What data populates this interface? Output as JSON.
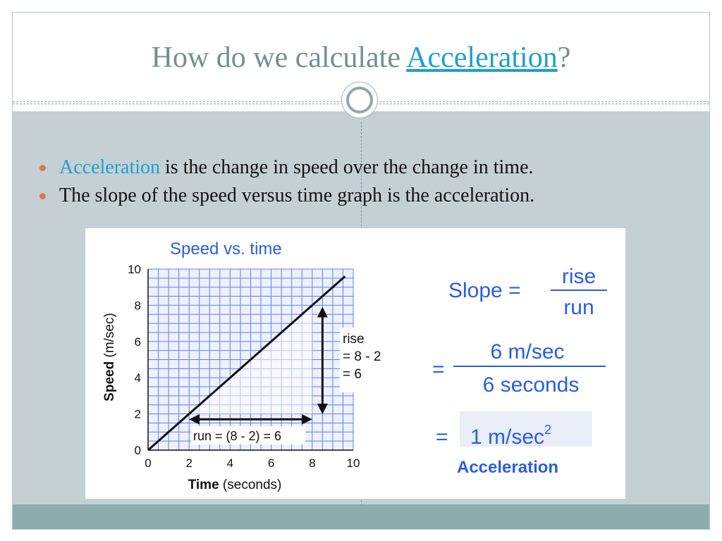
{
  "slide": {
    "title_prefix": "How do we calculate ",
    "title_link": "Acceleration",
    "title_suffix": "?",
    "bullets": [
      {
        "keyword": "Acceleration",
        "text": " is the change in speed over the change in time."
      },
      {
        "keyword": "",
        "text": "The slope of the speed versus time graph is the acceleration."
      }
    ]
  },
  "colors": {
    "title": "#73908f",
    "link": "#1e9fd0",
    "bullet_dot": "#e07a4e",
    "chart_blue": "#2a5ce6",
    "footer": "#8dadad",
    "background": "#c5d0d5"
  },
  "chart_data": {
    "type": "line",
    "title": "Speed vs. time",
    "xlabel_bold": "Time",
    "xlabel_rest": " (seconds)",
    "ylabel_bold": "Speed",
    "ylabel_rest": " (m/sec)",
    "xlim": [
      0,
      10
    ],
    "ylim": [
      0,
      10
    ],
    "x_ticks": [
      "0",
      "2",
      "4",
      "6",
      "8",
      "10"
    ],
    "y_ticks": [
      "0",
      "2",
      "4",
      "6",
      "8",
      "10"
    ],
    "grid": true,
    "series": [
      {
        "x": [
          0,
          9.6
        ],
        "y": [
          0,
          9.6
        ]
      }
    ],
    "annotations": {
      "rise_lines": [
        "rise",
        "= 8 - 2",
        "= 6"
      ],
      "run_label": "run = (8 - 2) = 6"
    }
  },
  "formula": {
    "slope_label": "Slope =",
    "rise": "rise",
    "run": "run",
    "eq1": "=",
    "num": "6 m/sec",
    "den": "6 seconds",
    "eq2": "=",
    "result": "1 m/sec",
    "result_exp": "2",
    "result_label": "Acceleration"
  }
}
